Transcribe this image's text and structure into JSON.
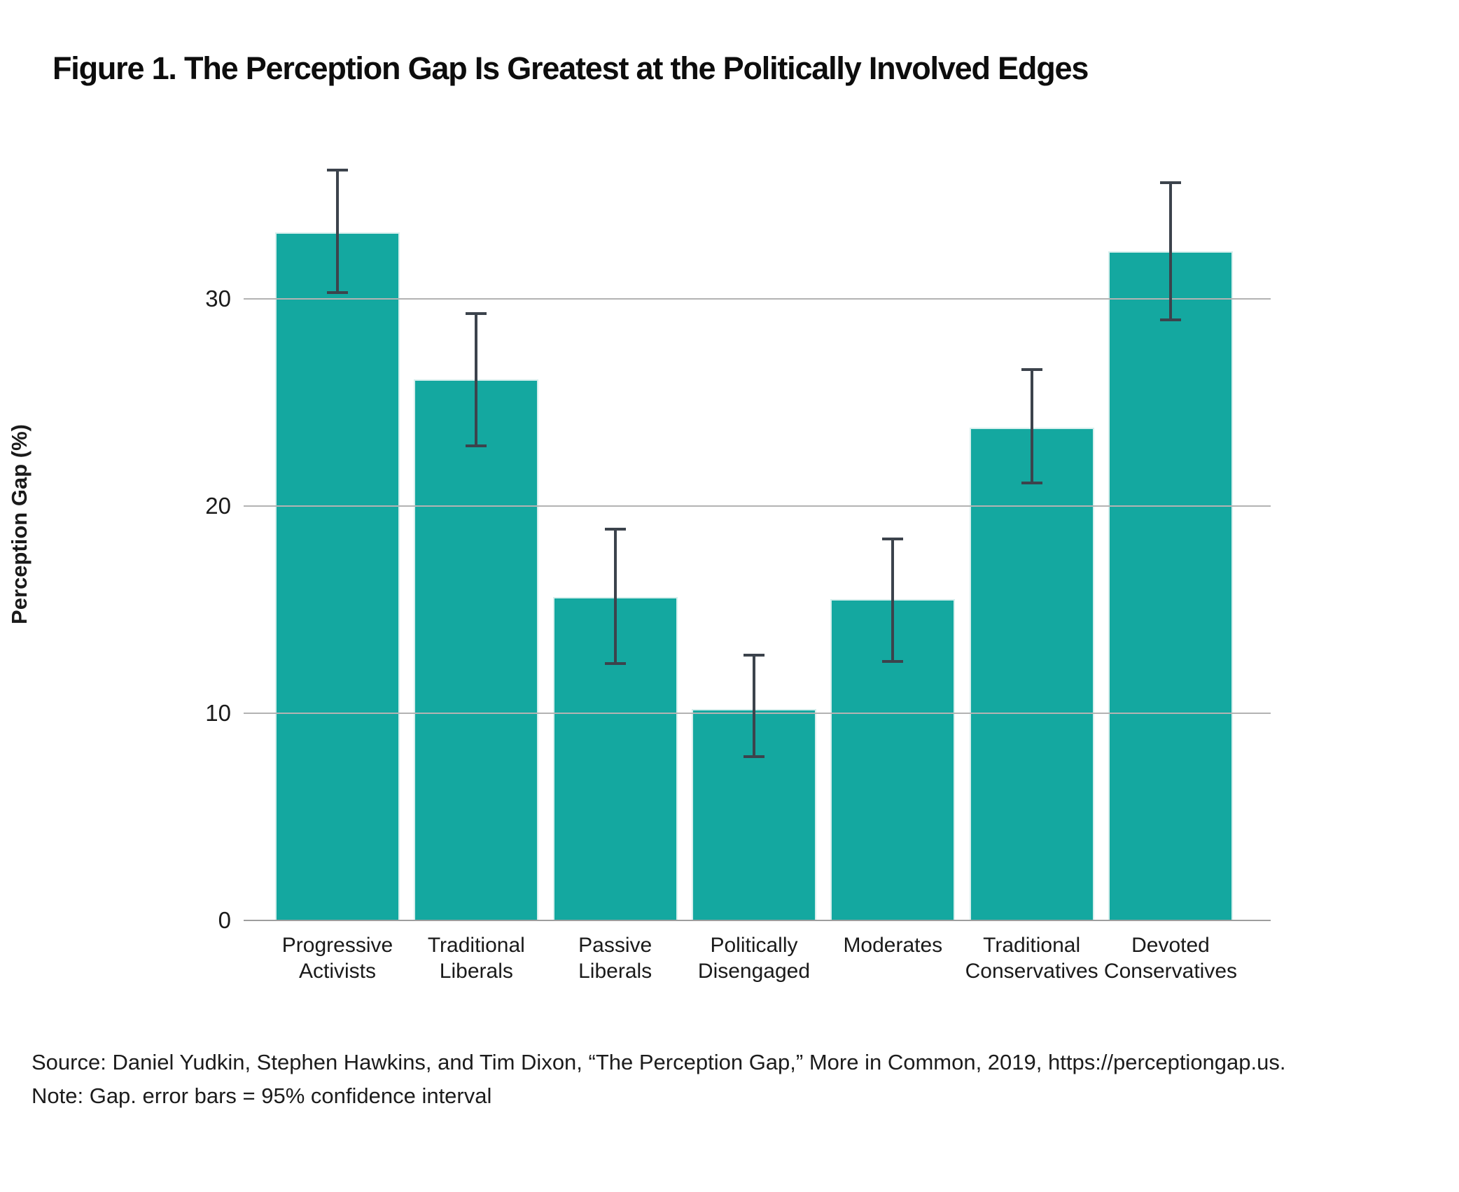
{
  "title": "Figure 1. The Perception Gap Is Greatest at the Politically Involved Edges",
  "footer": {
    "source": "Source: Daniel Yudkin, Stephen Hawkins, and Tim Dixon, “The Perception Gap,” More in Common, 2019, https://perceptiongap.us.",
    "note": "Note: Gap. error bars = 95% confidence interval"
  },
  "chart_data": {
    "type": "bar",
    "title": "Figure 1. The Perception Gap Is Greatest at the Politically Involved Edges",
    "xlabel": "",
    "ylabel": "Perception Gap (%)",
    "ylim": [
      0,
      38.3
    ],
    "yticks": [
      0,
      10,
      20,
      30
    ],
    "grid": "horizontal gridlines at y ticks, drawn over bars",
    "legend": "none",
    "bar_color": "#14a8a0",
    "error_bar_color": "#3c434c",
    "gridline_color": "#b3b3b3",
    "error_bars": "95% confidence interval",
    "categories": [
      "Progressive Activists",
      "Traditional Liberals",
      "Passive Liberals",
      "Politically Disengaged",
      "Moderates",
      "Traditional Conservatives",
      "Devoted Conservatives"
    ],
    "category_label_lines": [
      [
        "Progressive",
        "Activists"
      ],
      [
        "Traditional",
        "Liberals"
      ],
      [
        "Passive",
        "Liberals"
      ],
      [
        "Politically",
        "Disengaged"
      ],
      [
        "Moderates"
      ],
      [
        "Traditional",
        "Conservatives"
      ],
      [
        "Devoted",
        "Conservatives"
      ]
    ],
    "series": [
      {
        "name": "Perception Gap",
        "values": [
          33.2,
          26.1,
          15.6,
          10.2,
          15.5,
          23.8,
          32.3
        ],
        "ci_low": [
          30.3,
          22.9,
          12.4,
          7.9,
          12.5,
          21.1,
          29.0
        ],
        "ci_high": [
          36.2,
          29.3,
          18.9,
          12.8,
          18.4,
          26.6,
          35.6
        ]
      }
    ]
  }
}
